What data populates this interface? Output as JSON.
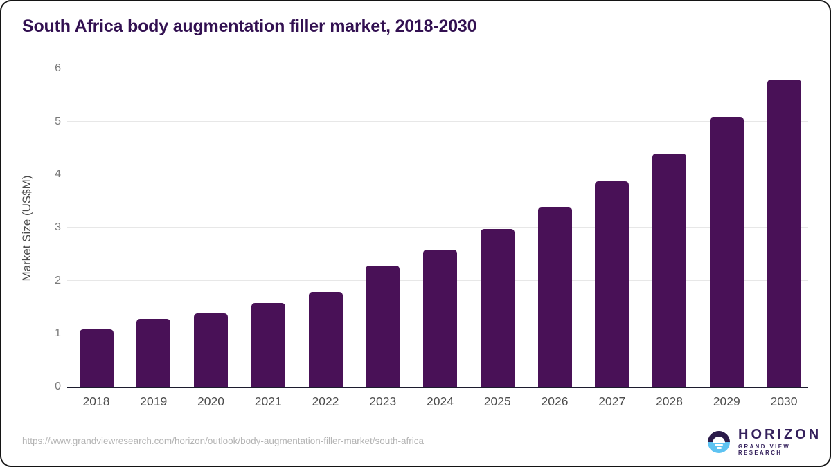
{
  "chart_data": {
    "type": "bar",
    "title": "South Africa body augmentation filler market, 2018-2030",
    "categories": [
      "2018",
      "2019",
      "2020",
      "2021",
      "2022",
      "2023",
      "2024",
      "2025",
      "2026",
      "2027",
      "2028",
      "2029",
      "2030"
    ],
    "values": [
      1.08,
      1.28,
      1.38,
      1.58,
      1.79,
      2.28,
      2.58,
      2.98,
      3.39,
      3.88,
      4.39,
      5.09,
      5.79
    ],
    "xlabel": "",
    "ylabel": "Market Size (US$M)",
    "ylim": [
      0,
      6
    ],
    "yticks": [
      0,
      1,
      2,
      3,
      4,
      5,
      6
    ],
    "grid": "horizontal",
    "legend_position": "none",
    "bar_color": "#491157",
    "title_color": "#321051"
  },
  "footer": {
    "source_url": "https://www.grandviewresearch.com/horizon/outlook/body-augmentation-filler-market/south-africa",
    "logo": {
      "name": "HORIZON",
      "subtitle": "GRAND VIEW RESEARCH"
    }
  }
}
